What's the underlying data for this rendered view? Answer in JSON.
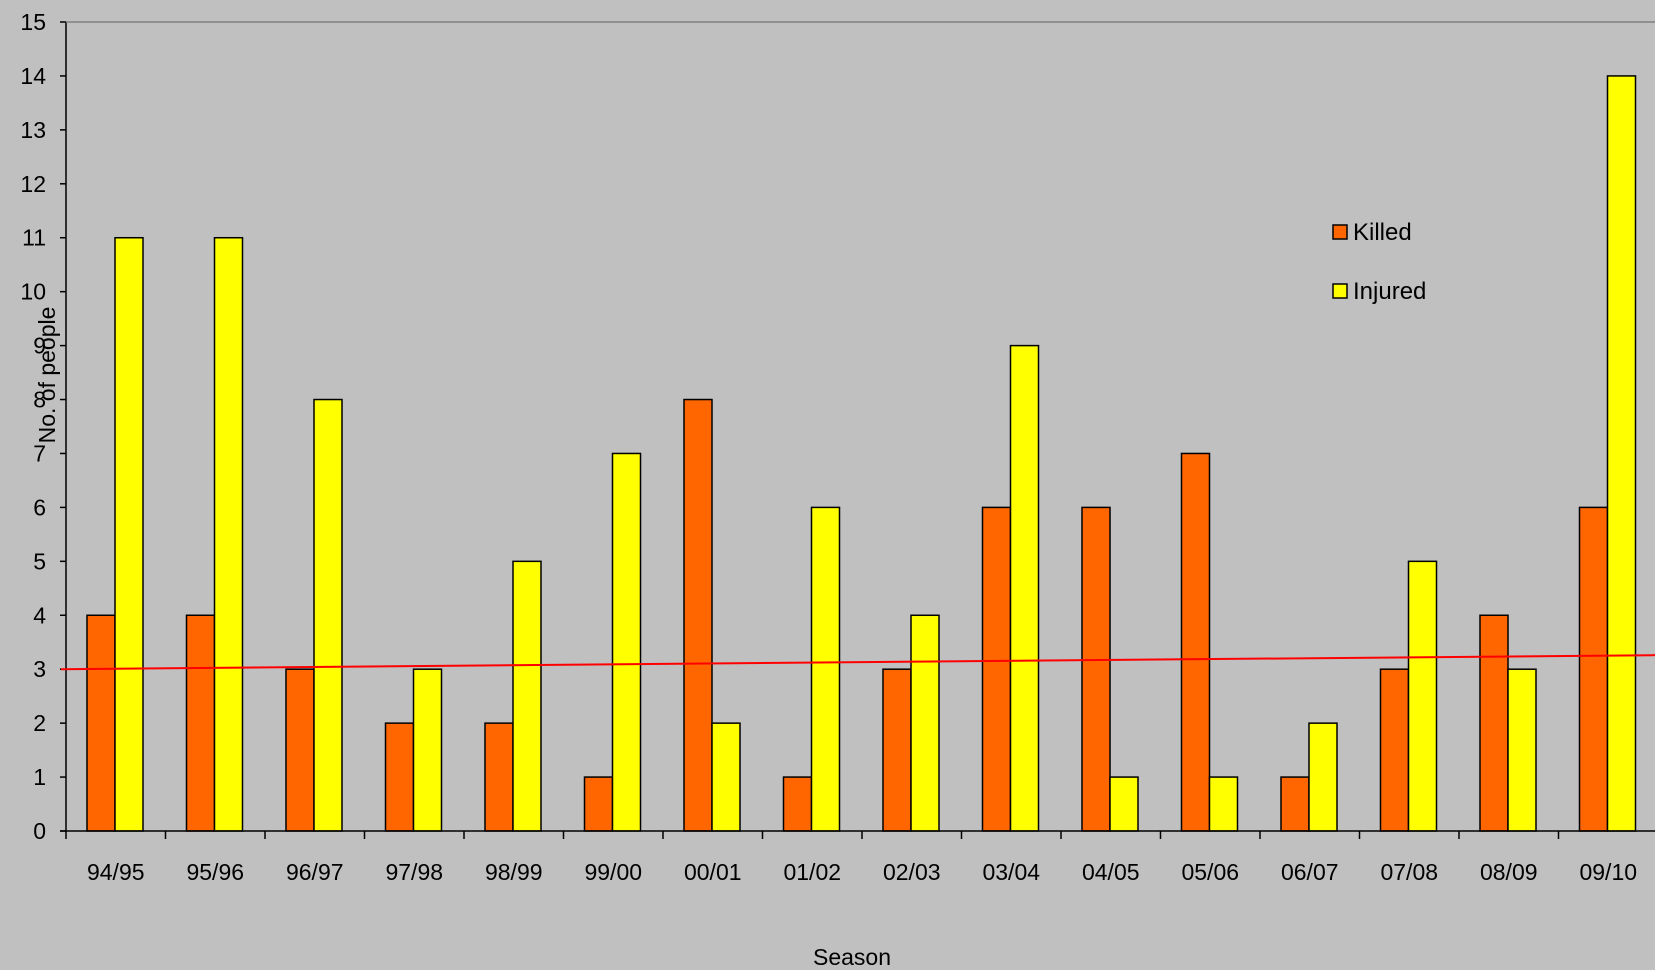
{
  "chart_data": {
    "type": "bar",
    "title": "",
    "xlabel": "Season",
    "ylabel": "No. of people",
    "ylim": [
      0,
      15
    ],
    "y_ticks": [
      0,
      1,
      2,
      3,
      4,
      5,
      6,
      7,
      8,
      9,
      10,
      11,
      12,
      13,
      14,
      15
    ],
    "categories": [
      "94/95",
      "95/96",
      "96/97",
      "97/98",
      "98/99",
      "99/00",
      "00/01",
      "01/02",
      "02/03",
      "03/04",
      "04/05",
      "05/06",
      "06/07",
      "07/08",
      "08/09",
      "09/10"
    ],
    "series": [
      {
        "name": "Killed",
        "color": "#ff6600",
        "values": [
          4,
          4,
          3,
          2,
          2,
          1,
          8,
          1,
          3,
          6,
          6,
          7,
          1,
          3,
          4,
          6
        ]
      },
      {
        "name": "Injured",
        "color": "#ffff00",
        "values": [
          11,
          11,
          8,
          3,
          5,
          7,
          2,
          6,
          4,
          9,
          1,
          1,
          2,
          5,
          3,
          14
        ]
      }
    ],
    "trendline": {
      "type": "linear",
      "color": "#ff0000",
      "start_value": 3.0,
      "end_value": 3.26
    },
    "legend_position": "top-right",
    "grid": false,
    "background_color": "#c0c0c0"
  }
}
